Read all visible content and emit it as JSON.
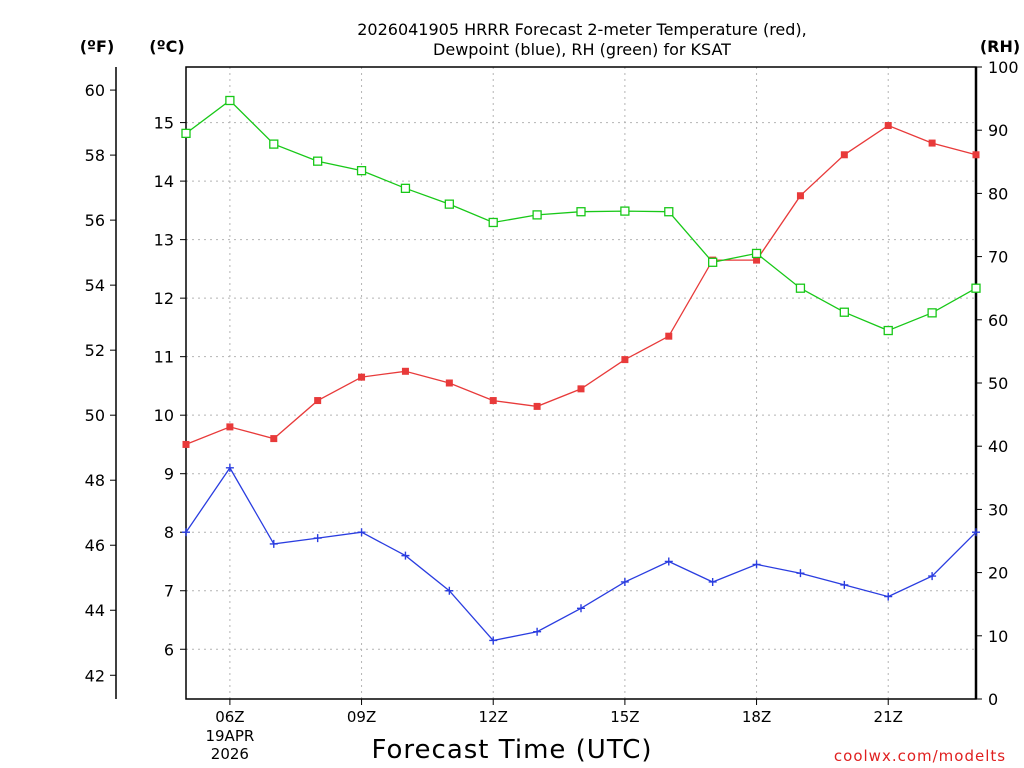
{
  "chart_data": {
    "type": "line",
    "title_line1": "2026041905 HRRR Forecast 2-meter Temperature (red),",
    "title_line2": "Dewpoint (blue), RH (green) for KSAT",
    "xlabel": "Forecast Time (UTC)",
    "credit": "coolwx.com/modelts",
    "units": {
      "fahrenheit": "(ºF)",
      "celsius": "(ºC)",
      "rh": "(RH)"
    },
    "x_ticks": [
      {
        "hour": 6,
        "label": "06Z",
        "date_line1": "19APR",
        "date_line2": "2026"
      },
      {
        "hour": 9,
        "label": "09Z"
      },
      {
        "hour": 12,
        "label": "12Z"
      },
      {
        "hour": 15,
        "label": "15Z"
      },
      {
        "hour": 18,
        "label": "18Z"
      },
      {
        "hour": 21,
        "label": "21Z"
      }
    ],
    "xlim": [
      5,
      23
    ],
    "celsius_axis": {
      "ylim": [
        5.15,
        15.95
      ],
      "ticks": [
        "6",
        "7",
        "8",
        "9",
        "10",
        "11",
        "12",
        "13",
        "14",
        "15"
      ]
    },
    "fahrenheit_axis": {
      "ylim": [
        41.27,
        60.71
      ],
      "ticks": [
        "42",
        "44",
        "46",
        "48",
        "50",
        "52",
        "54",
        "56",
        "58",
        "60"
      ]
    },
    "rh_axis": {
      "ylim": [
        0,
        100
      ],
      "ticks": [
        "0",
        "10",
        "20",
        "30",
        "40",
        "50",
        "60",
        "70",
        "80",
        "90",
        "100"
      ]
    },
    "x": [
      5,
      6,
      7,
      8,
      9,
      10,
      11,
      12,
      13,
      14,
      15,
      16,
      17,
      18,
      19,
      20,
      21,
      22,
      23
    ],
    "series": [
      {
        "name": "2-meter Temperature",
        "axis": "celsius",
        "color": "#e83a3a",
        "marker": "filled-square",
        "values": [
          9.5,
          9.8,
          9.6,
          10.25,
          10.65,
          10.75,
          10.55,
          10.25,
          10.15,
          10.45,
          10.95,
          11.35,
          12.65,
          12.65,
          13.75,
          14.45,
          14.95,
          14.65,
          14.45
        ]
      },
      {
        "name": "Dewpoint",
        "axis": "celsius",
        "color": "#2a3de0",
        "marker": "plus",
        "values": [
          8.0,
          9.1,
          7.8,
          7.9,
          8.0,
          7.6,
          7.0,
          6.15,
          6.3,
          6.7,
          7.15,
          7.5,
          7.15,
          7.45,
          7.3,
          7.1,
          6.9,
          7.25,
          8.0
        ]
      },
      {
        "name": "RH",
        "axis": "rh",
        "color": "#18c818",
        "marker": "open-square",
        "values": [
          89.5,
          94.7,
          87.8,
          85.1,
          83.6,
          80.8,
          78.3,
          75.4,
          76.6,
          77.1,
          77.2,
          77.1,
          69.1,
          70.5,
          65.0,
          61.2,
          58.3,
          61.1,
          65.0
        ]
      }
    ]
  }
}
